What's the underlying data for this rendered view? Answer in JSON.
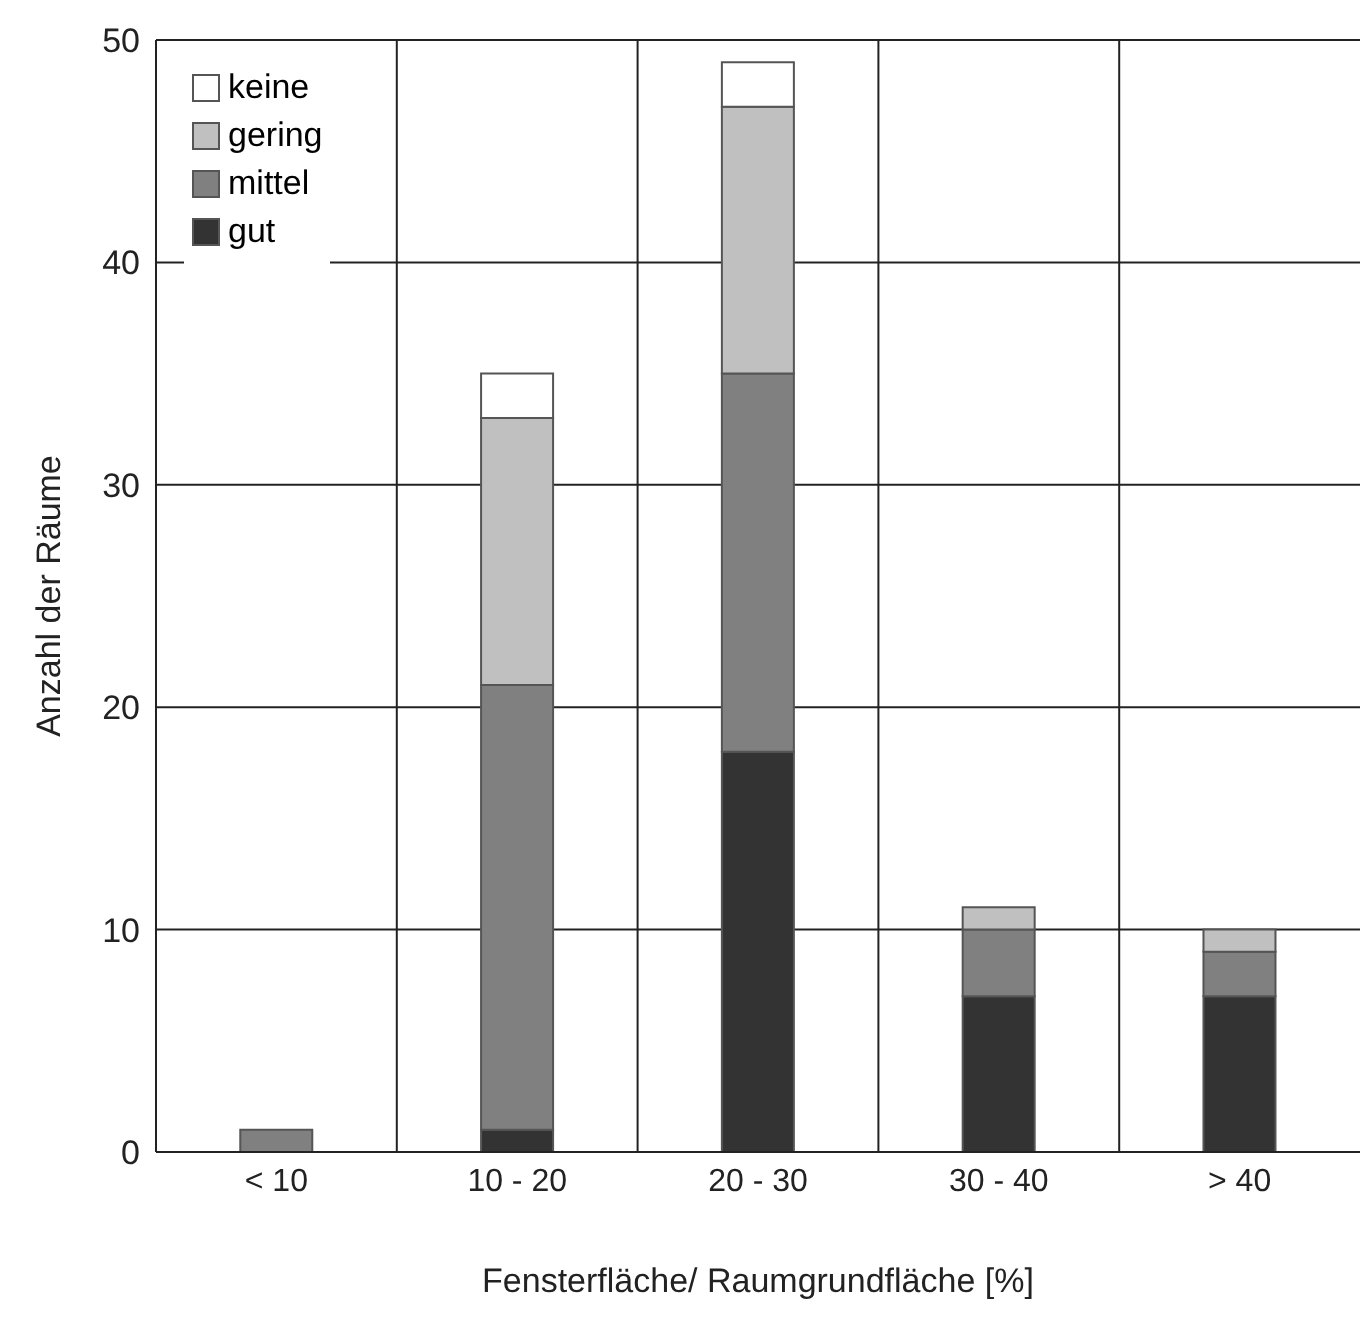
{
  "chart_data": {
    "type": "bar",
    "stacked": true,
    "xlabel": "Fensterfläche/ Raumgrundfläche [%]",
    "ylabel": "Anzahl der Räume",
    "categories": [
      "< 10",
      "10 - 20",
      "20 - 30",
      "30 - 40",
      "> 40"
    ],
    "series": [
      {
        "name": "gut",
        "color": "#333333",
        "values": [
          0,
          1,
          18,
          7,
          7
        ]
      },
      {
        "name": "mittel",
        "color": "#808080",
        "values": [
          1,
          20,
          17,
          3,
          2
        ]
      },
      {
        "name": "gering",
        "color": "#c0c0c0",
        "values": [
          0,
          12,
          12,
          1,
          1
        ]
      },
      {
        "name": "keine",
        "color": "#ffffff",
        "values": [
          0,
          2,
          2,
          0,
          0
        ]
      }
    ],
    "ylim": [
      0,
      50
    ],
    "yticks": [
      0,
      10,
      20,
      30,
      40,
      50
    ],
    "grid": true,
    "legend": "top left"
  }
}
